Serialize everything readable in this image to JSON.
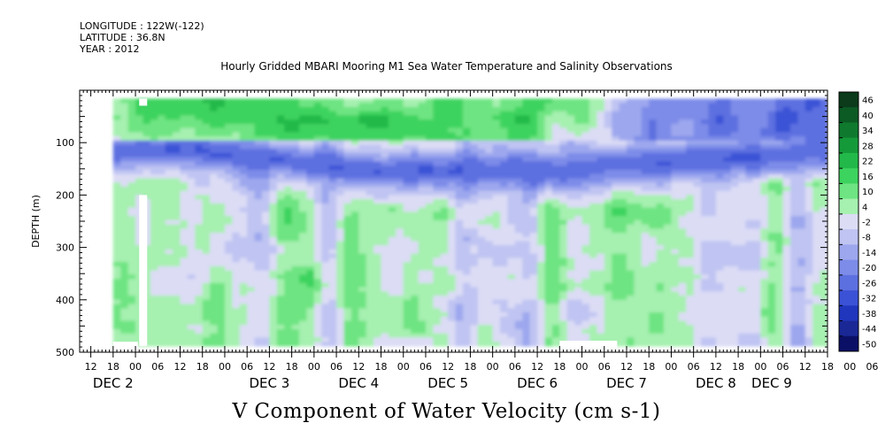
{
  "header": {
    "longitude": "LONGITUDE : 122W(-122)",
    "latitude": "LATITUDE : 36.8N",
    "year": "YEAR : 2012",
    "title": "Hourly Gridded MBARI Mooring M1 Sea Water Temperature and Salinity Observations"
  },
  "footer": {
    "variable_title": "V Component of Water Velocity (cm s-1)"
  },
  "chart_data": {
    "type": "heatmap",
    "title": "Hourly Gridded MBARI Mooring M1 Sea Water Temperature and Salinity Observations",
    "xlabel": "",
    "ylabel": "DEPTH (m)",
    "value_label": "V Component of Water Velocity (cm s-1)",
    "x_start": "2012-12-01T09:00",
    "x_end": "2012-12-09T18:00",
    "x_hour_tick_labels": [
      "12",
      "18",
      "00",
      "06",
      "12",
      "18",
      "00",
      "06",
      "12",
      "18",
      "00",
      "06",
      "12",
      "18",
      "00",
      "06",
      "12",
      "18",
      "00",
      "06",
      "12",
      "18",
      "00",
      "06",
      "12",
      "18",
      "00",
      "06",
      "12",
      "18",
      "00",
      "06",
      "12",
      "18",
      "00",
      "06"
    ],
    "x_day_labels": [
      "DEC 2",
      "DEC 3",
      "DEC 4",
      "DEC 5",
      "DEC 6",
      "DEC 7",
      "DEC 8",
      "DEC 9"
    ],
    "ylim": [
      500,
      0
    ],
    "y_ticks": [
      100,
      200,
      300,
      400,
      500
    ],
    "y_tick_labels": [
      "100",
      "200",
      "300",
      "400",
      "500"
    ],
    "data_depth_range": [
      16,
      488
    ],
    "data_time_start": "2012-12-01T18:00",
    "colorbar": {
      "levels": [
        46,
        40,
        34,
        28,
        22,
        16,
        10,
        4,
        -2,
        -8,
        -14,
        -20,
        -26,
        -32,
        -38,
        -44,
        -50
      ],
      "colors": [
        "#0b3b1a",
        "#0c5a24",
        "#0f7a2e",
        "#159a3a",
        "#22b94a",
        "#3cd35e",
        "#6ee482",
        "#a6f0b0",
        "#dcdcf5",
        "#bfc4f2",
        "#9da7ee",
        "#7d8ce8",
        "#5d70e0",
        "#3b52d6",
        "#2036bd",
        "#1a2896",
        "#0b1066"
      ]
    },
    "description_by_depth": [
      {
        "depth": [
          16,
          90
        ],
        "tendency": "positive (green, about +4 to +16) through Dec 6, then negative (blue, about -20 to -32) Dec 6-9"
      },
      {
        "depth": [
          90,
          200
        ],
        "tendency": "strong negative band (about -20 to -38) deepening from ~110 m to ~150 m by Dec 4"
      },
      {
        "depth": [
          200,
          488
        ],
        "tendency": "mixed weak flow, alternating vertical bands of about -14 to +10"
      }
    ],
    "grid": false,
    "legend": "right"
  }
}
